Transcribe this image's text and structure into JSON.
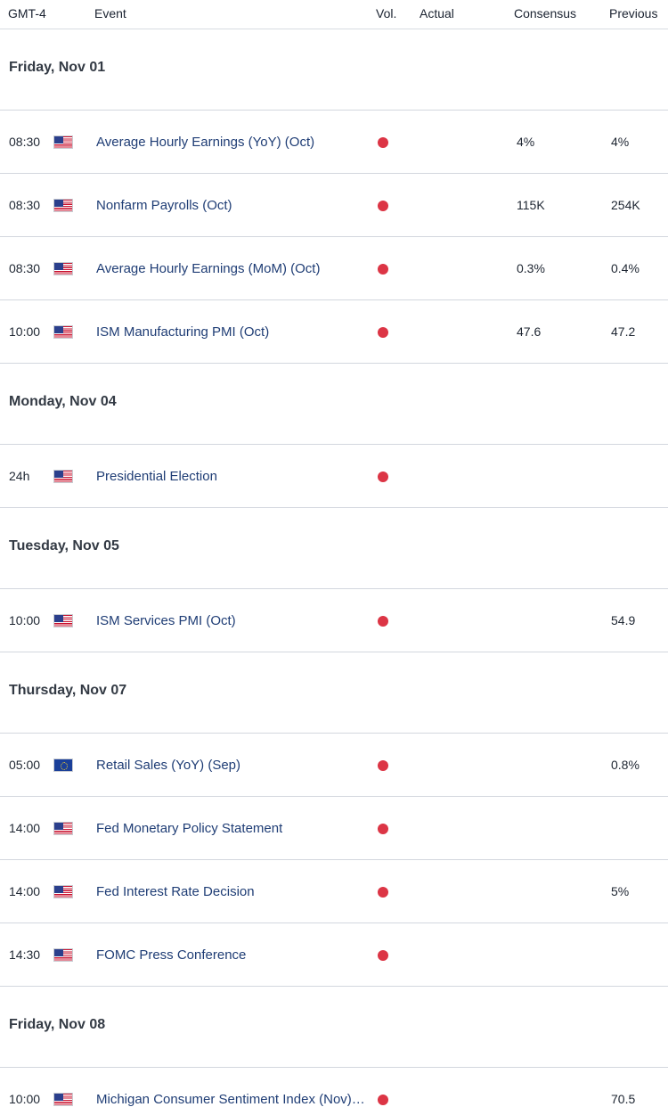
{
  "header": {
    "timezone": "GMT-4",
    "event": "Event",
    "volatility": "Vol.",
    "actual": "Actual",
    "consensus": "Consensus",
    "previous": "Previous"
  },
  "days": [
    {
      "date": "Friday, Nov 01",
      "events": [
        {
          "time": "08:30",
          "flag": "us-flag-icon",
          "name": "Average Hourly Earnings (YoY) (Oct)",
          "actual": "",
          "consensus": "4%",
          "previous": "4%"
        },
        {
          "time": "08:30",
          "flag": "us-flag-icon",
          "name": "Nonfarm Payrolls (Oct)",
          "actual": "",
          "consensus": "115K",
          "previous": "254K"
        },
        {
          "time": "08:30",
          "flag": "us-flag-icon",
          "name": "Average Hourly Earnings (MoM) (Oct)",
          "actual": "",
          "consensus": "0.3%",
          "previous": "0.4%"
        },
        {
          "time": "10:00",
          "flag": "us-flag-icon",
          "name": "ISM Manufacturing PMI (Oct)",
          "actual": "",
          "consensus": "47.6",
          "previous": "47.2"
        }
      ]
    },
    {
      "date": "Monday, Nov 04",
      "events": [
        {
          "time": "24h",
          "flag": "us-flag-icon",
          "name": "Presidential Election",
          "actual": "",
          "consensus": "",
          "previous": ""
        }
      ]
    },
    {
      "date": "Tuesday, Nov 05",
      "events": [
        {
          "time": "10:00",
          "flag": "us-flag-icon",
          "name": "ISM Services PMI (Oct)",
          "actual": "",
          "consensus": "",
          "previous": "54.9"
        }
      ]
    },
    {
      "date": "Thursday, Nov 07",
      "events": [
        {
          "time": "05:00",
          "flag": "eu-flag-icon",
          "name": "Retail Sales (YoY) (Sep)",
          "actual": "",
          "consensus": "",
          "previous": "0.8%"
        },
        {
          "time": "14:00",
          "flag": "us-flag-icon",
          "name": "Fed Monetary Policy Statement",
          "actual": "",
          "consensus": "",
          "previous": ""
        },
        {
          "time": "14:00",
          "flag": "us-flag-icon",
          "name": "Fed Interest Rate Decision",
          "actual": "",
          "consensus": "",
          "previous": "5%"
        },
        {
          "time": "14:30",
          "flag": "us-flag-icon",
          "name": "FOMC Press Conference",
          "actual": "",
          "consensus": "",
          "previous": ""
        }
      ]
    },
    {
      "date": "Friday, Nov 08",
      "events": [
        {
          "time": "10:00",
          "flag": "us-flag-icon",
          "name": "Michigan Consumer Sentiment Index (Nov)…",
          "actual": "",
          "consensus": "",
          "previous": "70.5"
        }
      ]
    }
  ],
  "colors": {
    "high_volatility": "#dc3545",
    "event_link": "#1f3d75"
  },
  "volatility_icon": "red-dot-icon"
}
